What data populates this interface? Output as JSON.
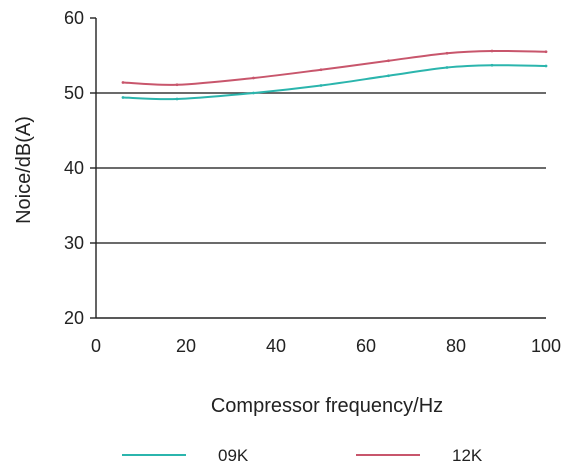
{
  "chart_data": {
    "type": "line",
    "title": "",
    "xlabel": "Compressor frequency/Hz",
    "ylabel": "Noice/dB(A)",
    "xlim": [
      0,
      100
    ],
    "ylim": [
      20,
      60
    ],
    "xticks": [
      0,
      20,
      40,
      60,
      80,
      100
    ],
    "yticks": [
      20,
      30,
      40,
      50,
      60
    ],
    "grid": "horizontal",
    "legend": "bottom",
    "series": [
      {
        "name": "09K",
        "color": "#2bb5ad",
        "x": [
          6,
          18,
          35,
          50,
          65,
          78,
          88,
          100
        ],
        "y": [
          49.4,
          49.2,
          50.0,
          51.0,
          52.3,
          53.4,
          53.7,
          53.6
        ]
      },
      {
        "name": "12K",
        "color": "#c8566c",
        "x": [
          6,
          18,
          35,
          50,
          65,
          78,
          88,
          100
        ],
        "y": [
          51.4,
          51.1,
          52.0,
          53.1,
          54.3,
          55.3,
          55.6,
          55.5
        ]
      }
    ]
  }
}
